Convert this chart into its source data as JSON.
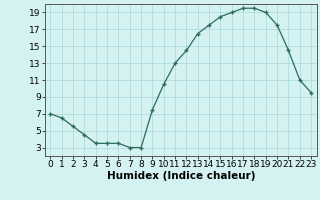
{
  "title": "",
  "xlabel": "Humidex (Indice chaleur)",
  "ylabel": "",
  "background_color": "#d4f2f2",
  "plot_bg_color": "#d4f2f2",
  "line_color": "#2d6b5e",
  "marker_color": "#2d6b5e",
  "x": [
    0,
    1,
    2,
    3,
    4,
    5,
    6,
    7,
    8,
    9,
    10,
    11,
    12,
    13,
    14,
    15,
    16,
    17,
    18,
    19,
    20,
    21,
    22,
    23
  ],
  "y": [
    7,
    6.5,
    5.5,
    4.5,
    3.5,
    3.5,
    3.5,
    3.0,
    3.0,
    7.5,
    10.5,
    13.0,
    14.5,
    16.5,
    17.5,
    18.5,
    19.0,
    19.5,
    19.5,
    19.0,
    17.5,
    14.5,
    11.0,
    9.5
  ],
  "ylim": [
    2,
    20
  ],
  "xlim": [
    -0.5,
    23.5
  ],
  "yticks": [
    3,
    5,
    7,
    9,
    11,
    13,
    15,
    17,
    19
  ],
  "xticks": [
    0,
    1,
    2,
    3,
    4,
    5,
    6,
    7,
    8,
    9,
    10,
    11,
    12,
    13,
    14,
    15,
    16,
    17,
    18,
    19,
    20,
    21,
    22,
    23
  ],
  "grid_color": "#aad8d8",
  "tick_fontsize": 6.5,
  "xlabel_fontsize": 7.5,
  "spine_color": "#555555"
}
